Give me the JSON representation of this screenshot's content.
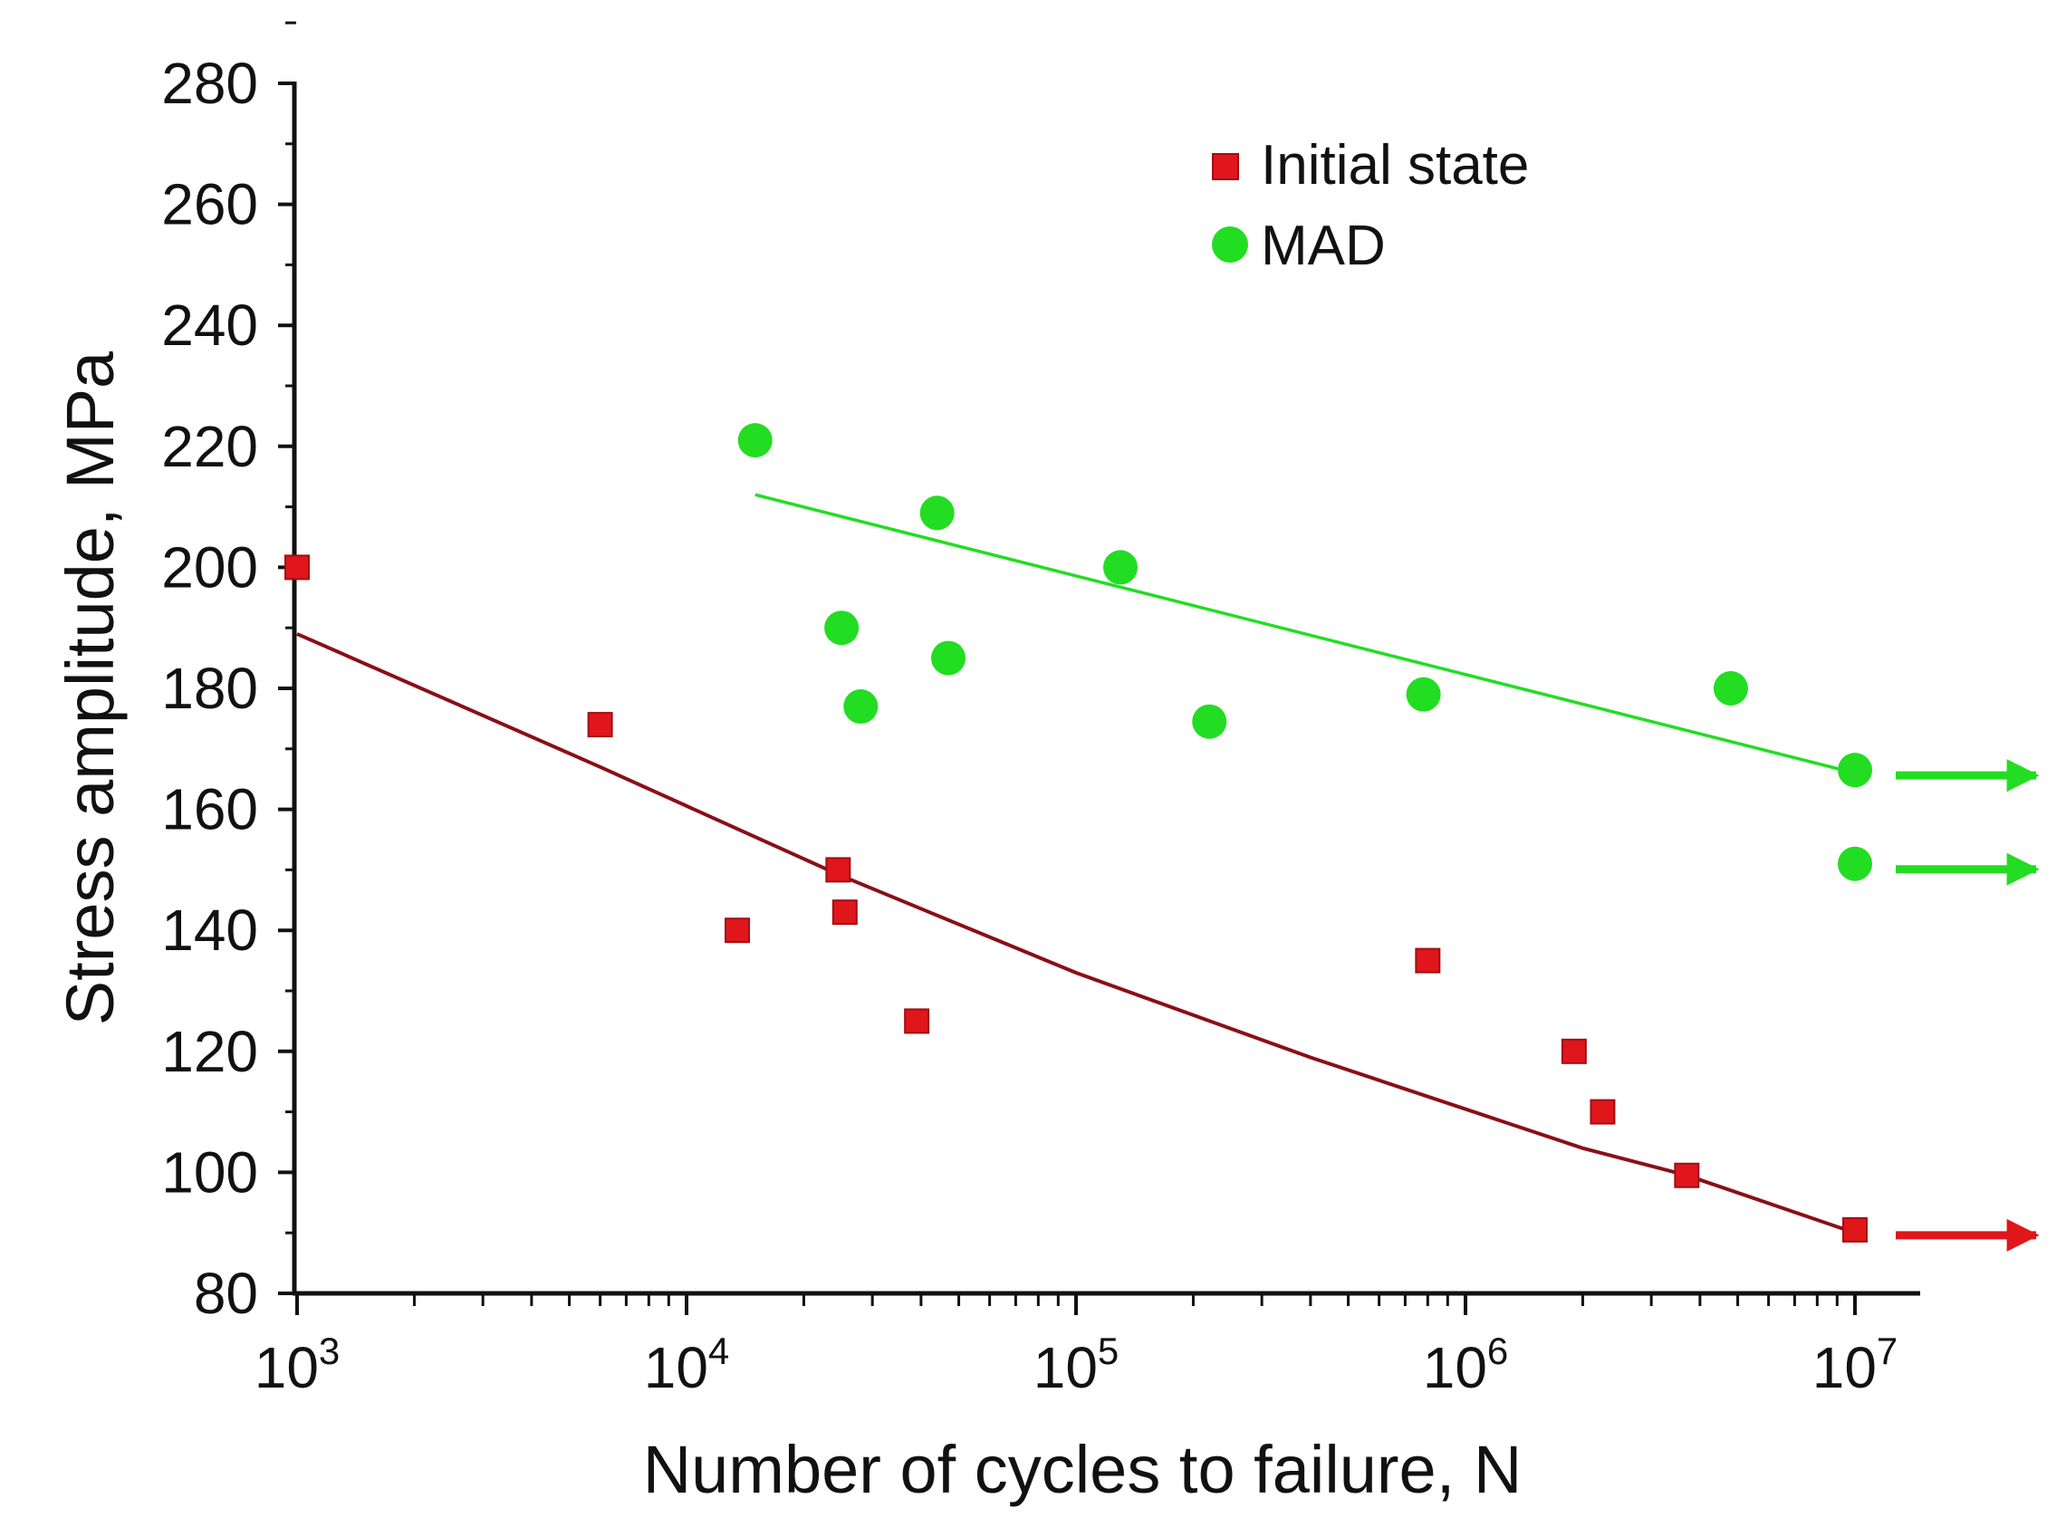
{
  "chart_data": {
    "type": "scatter",
    "xscale": "log",
    "xlabel": "Number of cycles to failure, N",
    "ylabel": "Stress amplitude, MPa",
    "xlim": [
      1000,
      10000000
    ],
    "ylim": [
      80,
      280
    ],
    "yticks": [
      80,
      100,
      120,
      140,
      160,
      180,
      200,
      220,
      240,
      260,
      280
    ],
    "xticks": [
      {
        "value": 1000,
        "base": "10",
        "exp": "3"
      },
      {
        "value": 10000,
        "base": "10",
        "exp": "4"
      },
      {
        "value": 100000,
        "base": "10",
        "exp": "5"
      },
      {
        "value": 1000000,
        "base": "10",
        "exp": "6"
      },
      {
        "value": 10000000,
        "base": "10",
        "exp": "7"
      }
    ],
    "legend_position": "top-center",
    "series": [
      {
        "name": "Initial state",
        "marker": "square",
        "color": "#e0161b",
        "points": [
          {
            "x": 1000,
            "y": 200
          },
          {
            "x": 6000,
            "y": 174
          },
          {
            "x": 13500,
            "y": 140
          },
          {
            "x": 24500,
            "y": 150
          },
          {
            "x": 25500,
            "y": 143
          },
          {
            "x": 39000,
            "y": 125
          },
          {
            "x": 800000,
            "y": 135
          },
          {
            "x": 1900000,
            "y": 120
          },
          {
            "x": 2250000,
            "y": 110
          },
          {
            "x": 3700000,
            "y": 99.5
          },
          {
            "x": 10000000,
            "y": 90.5
          }
        ],
        "runouts": [
          {
            "x": 10000000,
            "y": 90.5
          }
        ],
        "trend": {
          "color": "#8a0f18",
          "points": [
            {
              "x": 1000,
              "y": 189
            },
            {
              "x": 6000,
              "y": 167
            },
            {
              "x": 25000,
              "y": 149
            },
            {
              "x": 100000,
              "y": 133
            },
            {
              "x": 400000,
              "y": 119
            },
            {
              "x": 2000000,
              "y": 104
            },
            {
              "x": 3700000,
              "y": 99.5
            },
            {
              "x": 10000000,
              "y": 90
            }
          ]
        }
      },
      {
        "name": "MAD",
        "marker": "circle",
        "color": "#22dd22",
        "points": [
          {
            "x": 15000,
            "y": 221
          },
          {
            "x": 25000,
            "y": 190
          },
          {
            "x": 28000,
            "y": 177
          },
          {
            "x": 44000,
            "y": 209
          },
          {
            "x": 47000,
            "y": 185
          },
          {
            "x": 130000,
            "y": 200
          },
          {
            "x": 220000,
            "y": 174.5
          },
          {
            "x": 780000,
            "y": 179
          },
          {
            "x": 4800000,
            "y": 180
          },
          {
            "x": 10000000,
            "y": 166.5
          },
          {
            "x": 10000000,
            "y": 151
          }
        ],
        "runouts": [
          {
            "x": 10000000,
            "y": 166.5
          },
          {
            "x": 10000000,
            "y": 151
          }
        ],
        "trend": {
          "color": "#22dd22",
          "points": [
            {
              "x": 15000,
              "y": 212
            },
            {
              "x": 10000000,
              "y": 166
            }
          ]
        }
      }
    ]
  }
}
